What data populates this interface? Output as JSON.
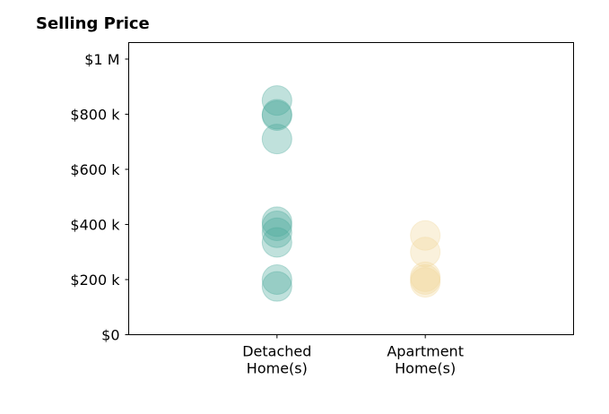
{
  "chart_data": {
    "type": "scatter",
    "title": "Selling Price",
    "xlabel": "",
    "ylabel": "",
    "categories": [
      "Detached\nHome(s)",
      "Apartment\nHome(s)"
    ],
    "category_labels": [
      [
        "Detached",
        "Home(s)"
      ],
      [
        "Apartment",
        "Home(s)"
      ]
    ],
    "ylim": [
      0,
      1060000
    ],
    "xlim": [
      0,
      3
    ],
    "yticks": [
      0,
      200000,
      400000,
      600000,
      800000,
      1000000
    ],
    "ytick_labels": [
      "$0",
      "$200 k",
      "$400 k",
      "$600 k",
      "$800 k",
      "$1 M"
    ],
    "grid": false,
    "legend": "none",
    "series": [
      {
        "category": "Detached\nHome(s)",
        "color": "#4aaa9c",
        "values": [
          850000,
          800000,
          795000,
          710000,
          410000,
          395000,
          370000,
          335000,
          200000,
          175000
        ]
      },
      {
        "category": "Apartment\nHome(s)",
        "color": "#f0d89a",
        "values": [
          360000,
          300000,
          210000,
          200000,
          190000
        ]
      }
    ]
  }
}
